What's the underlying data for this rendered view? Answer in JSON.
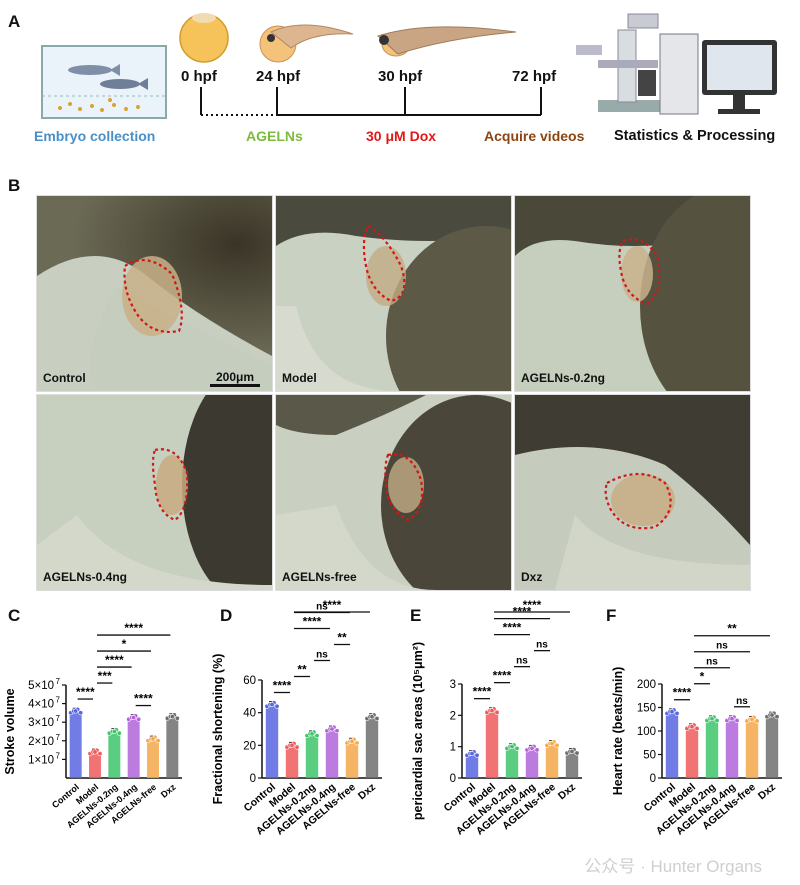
{
  "panels": {
    "A": "A",
    "B": "B",
    "C": "C",
    "D": "D",
    "E": "E",
    "F": "F"
  },
  "timeline": {
    "hpf": [
      "0 hpf",
      "24 hpf",
      "30 hpf",
      "72 hpf"
    ],
    "embryo_collection": "Embryo collection",
    "agelns": "AGELNs",
    "dox": "30 μM Dox",
    "acquire": "Acquire videos",
    "stats": "Statistics & Processing"
  },
  "colors": {
    "blue_label": "#4a90c8",
    "green_label": "#7dbb3c",
    "red_label": "#e01818",
    "brown_label": "#8b4513",
    "control": "#5865e0",
    "model": "#f05a5a",
    "agel02": "#3ec46a",
    "agel04": "#b064d8",
    "free": "#f5a84a",
    "dxz": "#6e6e6e"
  },
  "images": {
    "captions": [
      "Control",
      "Model",
      "AGELNs-0.2ng",
      "AGELNs-0.4ng",
      "AGELNs-free",
      "Dxz"
    ],
    "scale_bar": "200μm"
  },
  "watermark": "公众号 · Hunter Organs",
  "chart_data": [
    {
      "panel": "C",
      "type": "bar",
      "categories": [
        "Control",
        "Model",
        "AGELNs-0.2ng",
        "AGELNs-0.4ng",
        "AGELNs-free",
        "Dxz"
      ],
      "values": [
        36000000.0,
        14000000.0,
        25000000.0,
        32500000.0,
        21000000.0,
        33000000.0
      ],
      "ylabel": "Stroke volume",
      "ylim": [
        0,
        50000000.0
      ],
      "yticks": [
        {
          "v": 10000000.0,
          "t": "1×10"
        },
        {
          "v": 20000000.0,
          "t": "2×10"
        },
        {
          "v": 30000000.0,
          "t": "3×10"
        },
        {
          "v": 40000000.0,
          "t": "4×10"
        },
        {
          "v": 50000000.0,
          "t": "5×10"
        }
      ],
      "ytick_exp": "7",
      "sig": [
        {
          "a": 0,
          "b": 1,
          "l": "****"
        },
        {
          "a": 1,
          "b": 2,
          "l": "***"
        },
        {
          "a": 1,
          "b": 3,
          "l": "****"
        },
        {
          "a": 1,
          "b": 4,
          "l": "*"
        },
        {
          "a": 1,
          "b": 5,
          "l": "****"
        },
        {
          "a": 3,
          "b": 4,
          "l": "****"
        }
      ]
    },
    {
      "panel": "D",
      "type": "bar",
      "categories": [
        "Control",
        "Model",
        "AGELNs-0.2ng",
        "AGELNs-0.4ng",
        "AGELNs-free",
        "Dxz"
      ],
      "values": [
        45,
        20,
        27,
        30,
        22.5,
        37.5
      ],
      "ylabel": "Fractional shortening (%)",
      "ylim": [
        0,
        60
      ],
      "yticks": [
        {
          "v": 0,
          "t": "0"
        },
        {
          "v": 20,
          "t": "20"
        },
        {
          "v": 40,
          "t": "40"
        },
        {
          "v": 60,
          "t": "60"
        }
      ],
      "sig": [
        {
          "a": 0,
          "b": 1,
          "l": "****"
        },
        {
          "a": 1,
          "b": 2,
          "l": "**"
        },
        {
          "a": 2,
          "b": 3,
          "l": "ns"
        },
        {
          "a": 1,
          "b": 3,
          "l": "****"
        },
        {
          "a": 1,
          "b": 4,
          "l": "ns"
        },
        {
          "a": 1,
          "b": 5,
          "l": "****"
        },
        {
          "a": 3,
          "b": 4,
          "l": "**"
        }
      ]
    },
    {
      "panel": "E",
      "type": "bar",
      "categories": [
        "Control",
        "Model",
        "AGELNs-0.2ng",
        "AGELNs-0.4ng",
        "AGELNs-free",
        "Dxz"
      ],
      "values": [
        0.78,
        2.15,
        1.0,
        0.95,
        1.1,
        0.85
      ],
      "ylabel": "pericardial sac areas (10⁵μm²)",
      "ylim": [
        0,
        3
      ],
      "yticks": [
        {
          "v": 0,
          "t": "0"
        },
        {
          "v": 1,
          "t": "1"
        },
        {
          "v": 2,
          "t": "2"
        },
        {
          "v": 3,
          "t": "3"
        }
      ],
      "sig": [
        {
          "a": 0,
          "b": 1,
          "l": "****"
        },
        {
          "a": 1,
          "b": 2,
          "l": "****"
        },
        {
          "a": 2,
          "b": 3,
          "l": "ns"
        },
        {
          "a": 1,
          "b": 3,
          "l": "****"
        },
        {
          "a": 1,
          "b": 4,
          "l": "****"
        },
        {
          "a": 1,
          "b": 5,
          "l": "****"
        },
        {
          "a": 3,
          "b": 4,
          "l": "ns"
        }
      ]
    },
    {
      "panel": "F",
      "type": "bar",
      "categories": [
        "Control",
        "Model",
        "AGELNs-0.2ng",
        "AGELNs-0.4ng",
        "AGELNs-free",
        "Dxz"
      ],
      "values": [
        141,
        109,
        126,
        126,
        125,
        134
      ],
      "ylabel": "Heart rate (beats/min)",
      "ylim": [
        0,
        200
      ],
      "yticks": [
        {
          "v": 0,
          "t": "0"
        },
        {
          "v": 50,
          "t": "50"
        },
        {
          "v": 100,
          "t": "100"
        },
        {
          "v": 150,
          "t": "150"
        },
        {
          "v": 200,
          "t": "200"
        }
      ],
      "sig": [
        {
          "a": 0,
          "b": 1,
          "l": "****"
        },
        {
          "a": 1,
          "b": 2,
          "l": "*"
        },
        {
          "a": 1,
          "b": 3,
          "l": "ns"
        },
        {
          "a": 1,
          "b": 4,
          "l": "ns"
        },
        {
          "a": 1,
          "b": 5,
          "l": "**"
        },
        {
          "a": 3,
          "b": 4,
          "l": "ns"
        }
      ]
    }
  ]
}
